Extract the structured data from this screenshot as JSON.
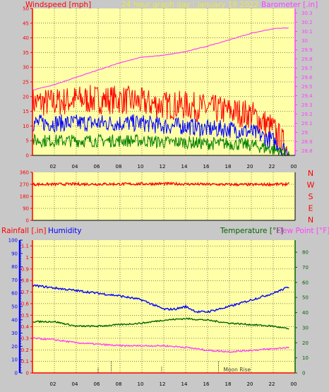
{
  "header": {
    "left_label": "Windspeed [mph]",
    "center_label": "24 hour graph day : January 18 2022",
    "right_label": "Barometer [.in]"
  },
  "colors": {
    "panel_bg": "#ffffa8",
    "frame_bg": "#c8c8c8",
    "red": "#ff0000",
    "blue": "#0000ff",
    "green": "#008000",
    "magenta": "#ff40ff",
    "title_yellow": "#e8e840",
    "dark_green": "#006400",
    "black": "#000000"
  },
  "chart_data": [
    {
      "type": "line",
      "name": "wind-barometer",
      "x_tick_labels": [
        "02",
        "04",
        "06",
        "08",
        "10",
        "12",
        "14",
        "16",
        "18",
        "20",
        "22",
        "00"
      ],
      "x_range": [
        0,
        24
      ],
      "left_axis": {
        "label": "Windspeed [mph]",
        "range": [
          0,
          50
        ],
        "ticks": [
          "0",
          "5",
          "10",
          "15",
          "20",
          "25",
          "30",
          "35",
          "40",
          "45",
          "50"
        ]
      },
      "right_axis": {
        "label": "Barometer [.in]",
        "range": [
          28.75,
          30.35
        ],
        "ticks": [
          "28.8",
          "28.9",
          "29",
          "29.1",
          "29.2",
          "29.3",
          "29.4",
          "29.5",
          "29.6",
          "29.7",
          "29.8",
          "29.9",
          "30",
          "30.1",
          "30.2",
          "30.3"
        ]
      },
      "grid": "dotted-black",
      "series": [
        {
          "key": "gust",
          "color": "#ff0000",
          "x": [
            0,
            2,
            4,
            6,
            8,
            10,
            12,
            14,
            16,
            18,
            20,
            22,
            23.5
          ],
          "y": [
            18,
            18,
            19,
            19,
            19,
            18,
            17,
            17,
            16,
            15,
            14,
            9,
            1
          ]
        },
        {
          "key": "avg",
          "color": "#0000ff",
          "x": [
            0,
            2,
            4,
            6,
            8,
            10,
            12,
            14,
            16,
            18,
            20,
            22,
            23.5
          ],
          "y": [
            11,
            11,
            11,
            11,
            11,
            11,
            10,
            10,
            9,
            9,
            8,
            5,
            0.5
          ]
        },
        {
          "key": "low",
          "color": "#008000",
          "x": [
            0,
            2,
            4,
            6,
            8,
            10,
            12,
            14,
            16,
            18,
            20,
            22,
            23.5
          ],
          "y": [
            5,
            5,
            5,
            5,
            5,
            5,
            4.5,
            4.5,
            4,
            4,
            3.5,
            2,
            0
          ]
        },
        {
          "key": "barometer",
          "color": "#ff40ff",
          "axis": "right",
          "x": [
            0,
            2,
            4,
            6,
            8,
            10,
            12,
            14,
            16,
            18,
            20,
            22,
            23.5
          ],
          "y": [
            29.46,
            29.52,
            29.6,
            29.68,
            29.76,
            29.82,
            29.84,
            29.88,
            29.94,
            30.01,
            30.08,
            30.13,
            30.14
          ]
        }
      ]
    },
    {
      "type": "line",
      "name": "wind-direction",
      "x_tick_labels": [
        "02",
        "04",
        "06",
        "08",
        "10",
        "12",
        "14",
        "16",
        "18",
        "20",
        "22",
        "00"
      ],
      "x_range": [
        0,
        24
      ],
      "left_axis": {
        "range": [
          0,
          360
        ],
        "ticks": [
          "0",
          "90",
          "180",
          "270",
          "360"
        ]
      },
      "compass_labels": [
        "N",
        "W",
        "S",
        "E",
        "N"
      ],
      "series": [
        {
          "key": "direction",
          "color": "#ff0000",
          "x": [
            0,
            4,
            8,
            12,
            16,
            20,
            23.5
          ],
          "y": [
            270,
            272,
            272,
            275,
            270,
            268,
            272
          ]
        }
      ]
    },
    {
      "type": "line",
      "name": "rain-humidity-temperature",
      "x_tick_labels": [
        "02",
        "04",
        "06",
        "08",
        "10",
        "12",
        "14",
        "16",
        "18",
        "20",
        "22",
        "00"
      ],
      "x_range": [
        0,
        24
      ],
      "legend": {
        "rainfall": "Rainfall [.in]",
        "humidity": "Humidity",
        "temperature": "Temperature [°F]",
        "dewpoint": "Dew Point [°F]"
      },
      "humidity_axis": {
        "range": [
          0,
          100
        ],
        "ticks": [
          "0",
          "10",
          "20",
          "30",
          "40",
          "50",
          "60",
          "70",
          "80",
          "90",
          "100"
        ]
      },
      "rain_axis": {
        "range": [
          0,
          1.15
        ],
        "ticks": [
          "0",
          "0.1",
          "0.2",
          "0.3",
          "0.4",
          "0.5",
          "0.6",
          "0.7",
          "0.8",
          "0.9",
          "1",
          "1.1"
        ]
      },
      "temp_axis": {
        "range": [
          0,
          88
        ],
        "ticks": [
          "0",
          "10",
          "20",
          "30",
          "40",
          "50",
          "60",
          "70",
          "80"
        ]
      },
      "annotation": "Moon Rise",
      "series": [
        {
          "key": "humidity",
          "color": "#0000ff",
          "axis": "humidity",
          "x": [
            0,
            2,
            4,
            6,
            8,
            10,
            12,
            13,
            14,
            15,
            16,
            18,
            20,
            22,
            23.5
          ],
          "y": [
            66,
            64,
            62,
            60,
            58,
            55,
            48,
            48,
            50,
            46,
            46,
            50,
            55,
            60,
            65
          ]
        },
        {
          "key": "temperature",
          "color": "#006400",
          "axis": "temp",
          "x": [
            0,
            2,
            4,
            6,
            8,
            10,
            12,
            14,
            16,
            18,
            20,
            22,
            23.5
          ],
          "y": [
            34,
            34,
            31,
            31,
            32,
            33,
            35,
            36,
            35,
            33,
            32,
            31,
            29
          ]
        },
        {
          "key": "dewpoint",
          "color": "#ff40ff",
          "axis": "temp",
          "x": [
            0,
            2,
            4,
            6,
            8,
            10,
            12,
            14,
            16,
            18,
            20,
            22,
            23.5
          ],
          "y": [
            23,
            22,
            20,
            19,
            18,
            18,
            18,
            17,
            15,
            14,
            15,
            16,
            17
          ]
        }
      ]
    }
  ]
}
